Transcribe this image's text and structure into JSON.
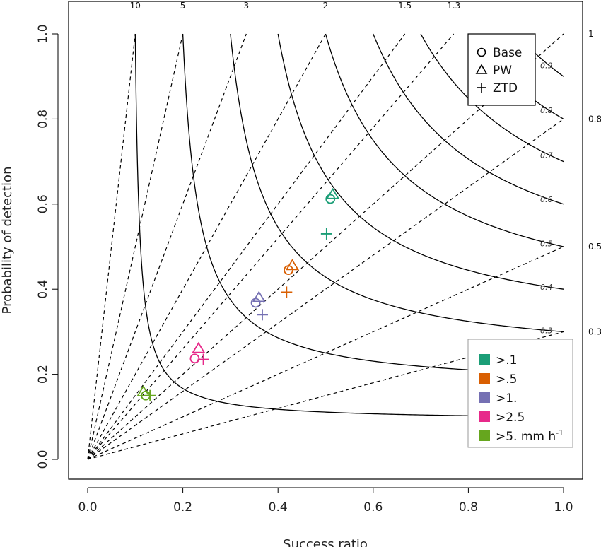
{
  "chart_data": {
    "type": "scatter",
    "subtype": "performance-diagram",
    "xlabel": "Success ratio",
    "ylabel": "Probability of detection",
    "xlim": [
      0,
      1
    ],
    "ylim": [
      0,
      1
    ],
    "x_ticks": [
      "0.0",
      "0.2",
      "0.4",
      "0.6",
      "0.8",
      "1.0"
    ],
    "y_ticks": [
      "0.0",
      "0.2",
      "0.4",
      "0.6",
      "0.8",
      "1.0"
    ],
    "grid": false,
    "bias_lines": [
      {
        "label": "10",
        "value": 10
      },
      {
        "label": "5",
        "value": 5
      },
      {
        "label": "3",
        "value": 3
      },
      {
        "label": "2",
        "value": 2
      },
      {
        "label": "1.5",
        "value": 1.5
      },
      {
        "label": "1.3",
        "value": 1.3
      },
      {
        "label": "1",
        "value": 1
      },
      {
        "label": "0.8",
        "value": 0.8
      },
      {
        "label": "0.5",
        "value": 0.5
      },
      {
        "label": "0.3",
        "value": 0.3
      }
    ],
    "csi_contours": [
      {
        "label": "0.1",
        "value": 0.1
      },
      {
        "label": "0.2",
        "value": 0.2
      },
      {
        "label": "0.3",
        "value": 0.3
      },
      {
        "label": "0.4",
        "value": 0.4
      },
      {
        "label": "0.5",
        "value": 0.5
      },
      {
        "label": "0.6",
        "value": 0.6
      },
      {
        "label": "0.7",
        "value": 0.7
      },
      {
        "label": "0.8",
        "value": 0.8
      },
      {
        "label": "0.9",
        "value": 0.9
      }
    ],
    "marker_legend": {
      "position": "top-right",
      "entries": [
        {
          "label": "Base",
          "marker": "circle"
        },
        {
          "label": "PW",
          "marker": "triangle"
        },
        {
          "label": "ZTD",
          "marker": "plus"
        }
      ]
    },
    "color_legend": {
      "position": "bottom-right",
      "entries": [
        {
          "label": ">.1",
          "color": "#1b9e77"
        },
        {
          "label": ">.5",
          "color": "#d95f02"
        },
        {
          "label": ">1.",
          "color": "#7570b3"
        },
        {
          "label": ">2.5",
          "color": "#e7298a"
        },
        {
          "label": ">5. mm h",
          "superscript": "-1",
          "color": "#66a61e"
        }
      ]
    },
    "series": [
      {
        "color": "#1b9e77",
        "points": [
          {
            "marker": "circle",
            "x": 0.51,
            "y": 0.612
          },
          {
            "marker": "triangle",
            "x": 0.515,
            "y": 0.622
          },
          {
            "marker": "plus",
            "x": 0.502,
            "y": 0.53
          }
        ]
      },
      {
        "color": "#d95f02",
        "points": [
          {
            "marker": "circle",
            "x": 0.422,
            "y": 0.445
          },
          {
            "marker": "triangle",
            "x": 0.43,
            "y": 0.455
          },
          {
            "marker": "plus",
            "x": 0.418,
            "y": 0.393
          }
        ]
      },
      {
        "color": "#7570b3",
        "points": [
          {
            "marker": "circle",
            "x": 0.353,
            "y": 0.368
          },
          {
            "marker": "triangle",
            "x": 0.36,
            "y": 0.38
          },
          {
            "marker": "plus",
            "x": 0.367,
            "y": 0.34
          }
        ]
      },
      {
        "color": "#e7298a",
        "points": [
          {
            "marker": "circle",
            "x": 0.225,
            "y": 0.237
          },
          {
            "marker": "triangle",
            "x": 0.233,
            "y": 0.26
          },
          {
            "marker": "plus",
            "x": 0.243,
            "y": 0.235
          }
        ]
      },
      {
        "color": "#66a61e",
        "points": [
          {
            "marker": "circle",
            "x": 0.122,
            "y": 0.15
          },
          {
            "marker": "triangle",
            "x": 0.117,
            "y": 0.158
          },
          {
            "marker": "plus",
            "x": 0.131,
            "y": 0.15
          }
        ]
      }
    ]
  }
}
